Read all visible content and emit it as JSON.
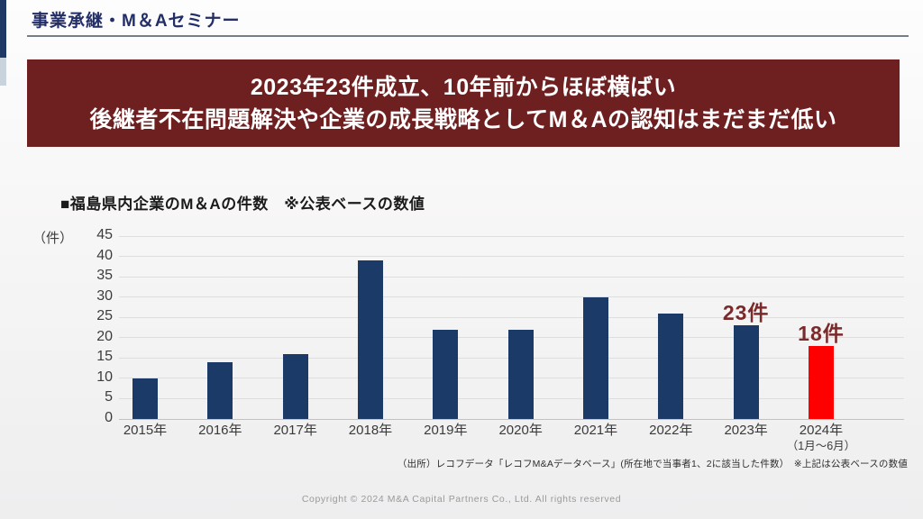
{
  "slide": {
    "header": {
      "title": "事業承継・M＆Aセミナー"
    },
    "banner": {
      "line1": "2023年23件成立、10年前からほぼ横ばい",
      "line2": "後継者不在問題解決や企業の成長戦略としてM＆Aの認知はまだまだ低い"
    },
    "source_note": "（出所）レコフデータ「レコフM&Aデータベース」(所在地で当事者1、2に該当した件数）　※上記は公表ベースの数値",
    "copyright": "Copyright © 2024 M&A Capital Partners Co., Ltd. All rights reserved"
  },
  "colors": {
    "accent_navy": "#1F3864",
    "accent_light": "#C9D3DE",
    "header_text": "#232D66",
    "banner_bg": "#6E1F20",
    "banner_text": "#FFFFFF",
    "bar": "#1C3A68",
    "bar_highlight": "#FE0000",
    "annotation": "#7B2A2A",
    "gridline": "#DEDEDE",
    "axis_text": "#3C3C3C"
  },
  "chart_data": {
    "type": "bar",
    "title": "■福島県内企業のM＆Aの件数　※公表ベースの数値",
    "unit_label": "（件）",
    "categories": [
      "2015年",
      "2016年",
      "2017年",
      "2018年",
      "2019年",
      "2020年",
      "2021年",
      "2022年",
      "2023年",
      "2024年"
    ],
    "category_sublabels": [
      "",
      "",
      "",
      "",
      "",
      "",
      "",
      "",
      "",
      "（1月～6月）"
    ],
    "values": [
      10,
      14,
      16,
      39,
      22,
      22,
      30,
      26,
      23,
      18
    ],
    "ylim": [
      0,
      45
    ],
    "ytick_step": 5,
    "grid": true,
    "legend": false,
    "highlight_index": 9,
    "annotations": [
      {
        "index": 8,
        "text": "23件"
      },
      {
        "index": 9,
        "text": "18件"
      }
    ]
  }
}
